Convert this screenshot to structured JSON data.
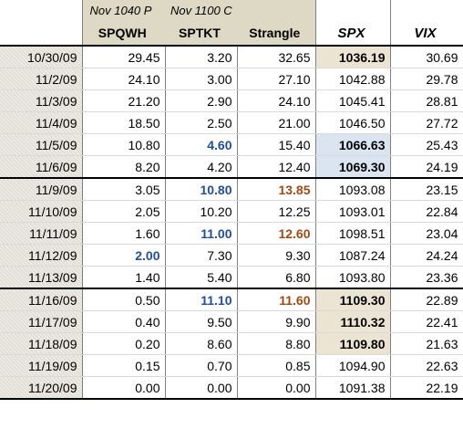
{
  "header": {
    "put_contract": "Nov 1040 P",
    "call_contract": "Nov 1100 C",
    "col_put": "SPQWH",
    "col_call": "SPTKT",
    "col_strangle": "Strangle",
    "col_spx": "SPX",
    "col_vix": "VIX"
  },
  "rows": [
    {
      "date": "10/30/09",
      "put": "29.45",
      "call": "3.20",
      "strangle": "32.65",
      "spx": "1036.19",
      "vix": "30.69"
    },
    {
      "date": "11/2/09",
      "put": "24.10",
      "call": "3.00",
      "strangle": "27.10",
      "spx": "1042.88",
      "vix": "29.78"
    },
    {
      "date": "11/3/09",
      "put": "21.20",
      "call": "2.90",
      "strangle": "24.10",
      "spx": "1045.41",
      "vix": "28.81"
    },
    {
      "date": "11/4/09",
      "put": "18.50",
      "call": "2.50",
      "strangle": "21.00",
      "spx": "1046.50",
      "vix": "27.72"
    },
    {
      "date": "11/5/09",
      "put": "10.80",
      "call": "4.60",
      "strangle": "15.40",
      "spx": "1066.63",
      "vix": "25.43"
    },
    {
      "date": "11/6/09",
      "put": "8.20",
      "call": "4.20",
      "strangle": "12.40",
      "spx": "1069.30",
      "vix": "24.19"
    },
    {
      "date": "11/9/09",
      "put": "3.05",
      "call": "10.80",
      "strangle": "13.85",
      "spx": "1093.08",
      "vix": "23.15"
    },
    {
      "date": "11/10/09",
      "put": "2.05",
      "call": "10.20",
      "strangle": "12.25",
      "spx": "1093.01",
      "vix": "22.84"
    },
    {
      "date": "11/11/09",
      "put": "1.60",
      "call": "11.00",
      "strangle": "12.60",
      "spx": "1098.51",
      "vix": "23.04"
    },
    {
      "date": "11/12/09",
      "put": "2.00",
      "call": "7.30",
      "strangle": "9.30",
      "spx": "1087.24",
      "vix": "24.24"
    },
    {
      "date": "11/13/09",
      "put": "1.40",
      "call": "5.40",
      "strangle": "6.80",
      "spx": "1093.80",
      "vix": "23.36"
    },
    {
      "date": "11/16/09",
      "put": "0.50",
      "call": "11.10",
      "strangle": "11.60",
      "spx": "1109.30",
      "vix": "22.89"
    },
    {
      "date": "11/17/09",
      "put": "0.40",
      "call": "9.50",
      "strangle": "9.90",
      "spx": "1110.32",
      "vix": "22.41"
    },
    {
      "date": "11/18/09",
      "put": "0.20",
      "call": "8.60",
      "strangle": "8.80",
      "spx": "1109.80",
      "vix": "21.63"
    },
    {
      "date": "11/19/09",
      "put": "0.15",
      "call": "0.70",
      "strangle": "0.85",
      "spx": "1094.90",
      "vix": "22.63"
    },
    {
      "date": "11/20/09",
      "put": "0.00",
      "call": "0.00",
      "strangle": "0.00",
      "spx": "1091.38",
      "vix": "22.19"
    }
  ]
}
